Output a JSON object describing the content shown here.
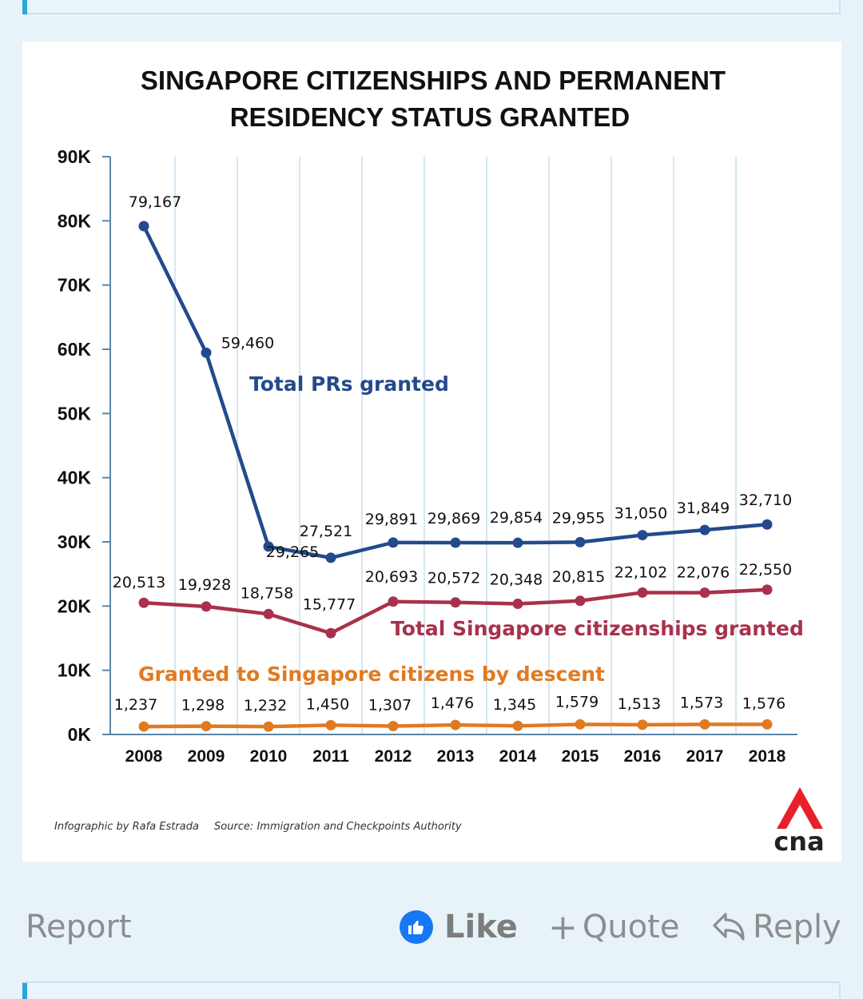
{
  "post_actions": {
    "report": "Report",
    "like": "Like",
    "quote": "Quote",
    "quote_prefix": "+",
    "reply": "Reply"
  },
  "footer": {
    "credit": "Infographic by Rafa Estrada",
    "source": "Source: Immigration and Checkpoints Authority",
    "logo_text": "cna"
  },
  "colors": {
    "prs": "#234a8c",
    "citizenships": "#a8324b",
    "descent": "#e07a22",
    "grid": "#d6e7f1",
    "axis": "#5a86a6",
    "logo_red": "#e8202a"
  },
  "chart_data": {
    "type": "line",
    "title_lines": [
      "SINGAPORE CITIZENSHIPS AND PERMANENT",
      "RESIDENCY STATUS GRANTED"
    ],
    "x": [
      "2008",
      "2009",
      "2010",
      "2011",
      "2012",
      "2013",
      "2014",
      "2015",
      "2016",
      "2017",
      "2018"
    ],
    "ylim": [
      0,
      90000
    ],
    "yticks": [
      "0K",
      "10K",
      "20K",
      "30K",
      "40K",
      "50K",
      "60K",
      "70K",
      "80K",
      "90K"
    ],
    "grid": "vertical",
    "series": [
      {
        "name": "Total PRs granted",
        "values": [
          79167,
          59460,
          29265,
          27521,
          29891,
          29869,
          29854,
          29955,
          31050,
          31849,
          32710
        ],
        "labels": [
          "79,167",
          "59,460",
          "29,265",
          "27,521",
          "29,891",
          "29,869",
          "29,854",
          "29,955",
          "31,050",
          "31,849",
          "32,710"
        ]
      },
      {
        "name": "Total Singapore citizenships granted",
        "values": [
          20513,
          19928,
          18758,
          15777,
          20693,
          20572,
          20348,
          20815,
          22102,
          22076,
          22550
        ],
        "labels": [
          "20,513",
          "19,928",
          "18,758",
          "15,777",
          "20,693",
          "20,572",
          "20,348",
          "20,815",
          "22,102",
          "22,076",
          "22,550"
        ]
      },
      {
        "name": "Granted to Singapore citizens by descent",
        "values": [
          1237,
          1298,
          1232,
          1450,
          1307,
          1476,
          1345,
          1579,
          1513,
          1573,
          1576
        ],
        "labels": [
          "1,237",
          "1,298",
          "1,232",
          "1,450",
          "1,307",
          "1,476",
          "1,345",
          "1,579",
          "1,513",
          "1,573",
          "1,576"
        ]
      }
    ]
  }
}
